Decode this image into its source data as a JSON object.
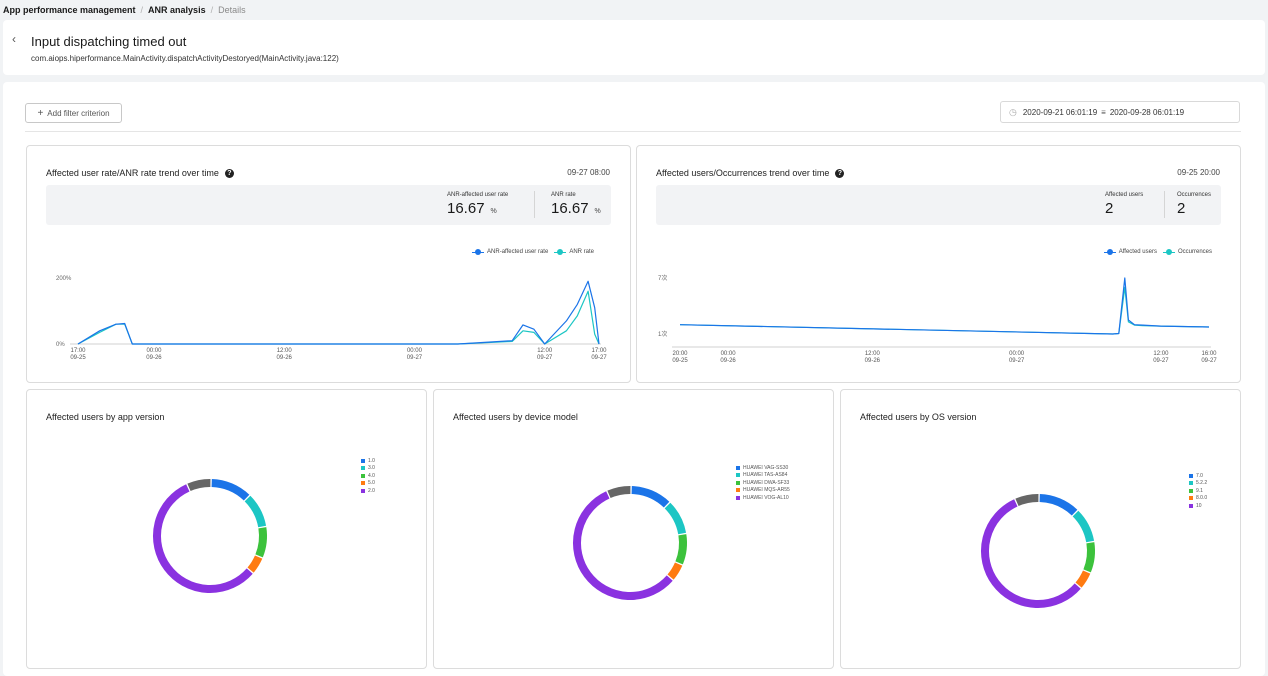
{
  "breadcrumb": {
    "item1": "App performance management",
    "item2": "ANR analysis",
    "item3": "Details",
    "sep": "/"
  },
  "header": {
    "title": "Input dispatching timed out",
    "subtitle": "com.aiops.hiperformance.MainActivity.dispatchActivityDestoryed(MainActivity.java:122)"
  },
  "toolbar": {
    "add_filter_label": "Add filter criterion",
    "date_start": "2020-09-21 06:01:19",
    "date_end": "2020-09-28 06:01:19"
  },
  "panels": {
    "rate": {
      "title": "Affected user rate/ANR rate trend over time",
      "time": "09-27 08:00",
      "stat1_label": "ANR-affected user rate",
      "stat1_value": "16.67",
      "stat1_unit": "%",
      "stat2_label": "ANR rate",
      "stat2_value": "16.67",
      "stat2_unit": "%",
      "legend1": "ANR-affected user rate",
      "legend2": "ANR rate"
    },
    "users": {
      "title": "Affected users/Occurrences trend over time",
      "time": "09-25 20:00",
      "stat1_label": "Affected users",
      "stat1_value": "2",
      "stat2_label": "Occurrences",
      "stat2_value": "2",
      "legend1": "Affected users",
      "legend2": "Occurrences"
    },
    "app_version": {
      "title": "Affected users by app version"
    },
    "device_model": {
      "title": "Affected users by device model"
    },
    "os_version": {
      "title": "Affected users by OS version"
    }
  },
  "colors": {
    "blue": "#1b74e8",
    "teal": "#1cc6c4",
    "green": "#3cc23c",
    "orange": "#ff7b11",
    "purple": "#8a32e0",
    "gray": "#666666"
  },
  "chart_data": [
    {
      "type": "line",
      "title": "Affected user rate/ANR rate trend over time",
      "y_tick_labels": [
        "0%",
        "200%"
      ],
      "ylim": [
        0,
        200
      ],
      "x_ticks": [
        "17:00\n09-25",
        "00:00\n09-26",
        "12:00\n09-26",
        "00:00\n09-27",
        "12:00\n09-27",
        "17:00\n09-27"
      ],
      "x_hours": [
        0,
        48
      ],
      "series": [
        {
          "name": "ANR-affected user rate",
          "color": "#1b74e8",
          "x": [
            0,
            2,
            3.5,
            4.3,
            5,
            35,
            40,
            41,
            42,
            43,
            45,
            46,
            47,
            47.6,
            48
          ],
          "y": [
            0,
            40,
            60,
            62,
            0,
            0,
            10,
            58,
            45,
            0,
            70,
            120,
            190,
            110,
            0
          ]
        },
        {
          "name": "ANR rate",
          "color": "#1cc6c4",
          "x": [
            0,
            2,
            3.5,
            4.3,
            5,
            35,
            40,
            41,
            42,
            43,
            45,
            46,
            47,
            47.6,
            48
          ],
          "y": [
            0,
            35,
            60,
            60,
            0,
            0,
            8,
            40,
            35,
            0,
            40,
            85,
            160,
            30,
            0
          ]
        }
      ]
    },
    {
      "type": "line",
      "title": "Affected users/Occurrences trend over time",
      "y_tick_labels": [
        "1次",
        "7次"
      ],
      "ylim": [
        1,
        7
      ],
      "x_ticks": [
        "20:00\n09-25",
        "00:00\n09-26",
        "12:00\n09-26",
        "00:00\n09-27",
        "12:00\n09-27",
        "16:00\n09-27"
      ],
      "x_hours": [
        0,
        44
      ],
      "series": [
        {
          "name": "Affected users",
          "color": "#1b74e8",
          "x": [
            0,
            36,
            36.5,
            37,
            37.3,
            37.8,
            38.5,
            40,
            44
          ],
          "y": [
            2.0,
            1.0,
            1.05,
            7.0,
            2.5,
            2.0,
            1.95,
            1.85,
            1.75
          ]
        },
        {
          "name": "Occurrences",
          "color": "#1cc6c4",
          "x": [
            0,
            36,
            36.5,
            37,
            37.3,
            37.8,
            38.5,
            40,
            44
          ],
          "y": [
            2.0,
            1.0,
            1.05,
            6.0,
            2.3,
            1.95,
            1.9,
            1.85,
            1.75
          ]
        }
      ]
    },
    {
      "type": "pie",
      "title": "Affected users by app version",
      "labels": [
        "1.0",
        "3.0",
        "4.0",
        "5.0",
        "2.0",
        "other"
      ],
      "values": [
        12,
        10,
        9,
        5,
        57,
        7
      ],
      "colors": [
        "#1b74e8",
        "#1cc6c4",
        "#3cc23c",
        "#ff7b11",
        "#8a32e0",
        "#666666"
      ],
      "legend_labels": [
        "1.0",
        "3.0",
        "4.0",
        "5.0",
        "2.0"
      ]
    },
    {
      "type": "pie",
      "title": "Affected users by device model",
      "labels": [
        "HUAWEI VAG-SS30",
        "HUAWEI TAS-AS84",
        "HUAWEI DWA-SF33",
        "HUAWEI MQS-AR55",
        "HUAWEI VOG-AL10",
        "other"
      ],
      "values": [
        12,
        10,
        9,
        5,
        57,
        7
      ],
      "colors": [
        "#1b74e8",
        "#1cc6c4",
        "#3cc23c",
        "#ff7b11",
        "#8a32e0",
        "#666666"
      ],
      "legend_labels": [
        "HUAWEI VAG-SS30",
        "HUAWEI TAS-AS84",
        "HUAWEI DWA-SF33",
        "HUAWEI MQS-AR55",
        "HUAWEI VOG-AL10"
      ]
    },
    {
      "type": "pie",
      "title": "Affected users by OS version",
      "labels": [
        "7.0",
        "5.2.2",
        "9.1",
        "8.0.0",
        "10",
        "other"
      ],
      "values": [
        12,
        10,
        9,
        5,
        57,
        7
      ],
      "colors": [
        "#1b74e8",
        "#1cc6c4",
        "#3cc23c",
        "#ff7b11",
        "#8a32e0",
        "#666666"
      ],
      "legend_labels": [
        "7.0",
        "5.2.2",
        "9.1",
        "8.0.0",
        "10"
      ]
    }
  ]
}
